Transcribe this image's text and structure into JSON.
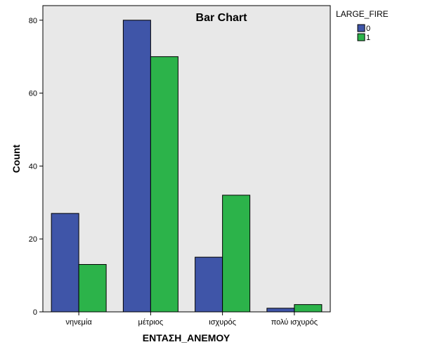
{
  "chart_data": {
    "type": "bar",
    "title": "Bar Chart",
    "xlabel": "ΕΝΤΑΣΗ_ΑΝΕΜΟΥ",
    "ylabel": "Count",
    "categories": [
      "νηνεμία",
      "μέτριος",
      "ισχυρός",
      "πολύ ισχυρός"
    ],
    "series": [
      {
        "name": "0",
        "values": [
          27,
          80,
          15,
          1
        ],
        "color": "#3f55a8"
      },
      {
        "name": "1",
        "values": [
          13,
          70,
          32,
          2
        ],
        "color": "#2cb34a"
      }
    ],
    "ylim": [
      0,
      84
    ],
    "yticks": [
      0,
      20,
      40,
      60,
      80
    ],
    "legend": {
      "title": "LARGE_FIRE",
      "placement": "top-right-outside"
    },
    "grid": false,
    "colors": {
      "plot_background": "#e8e8e8",
      "bar_outline": "#000000"
    }
  }
}
